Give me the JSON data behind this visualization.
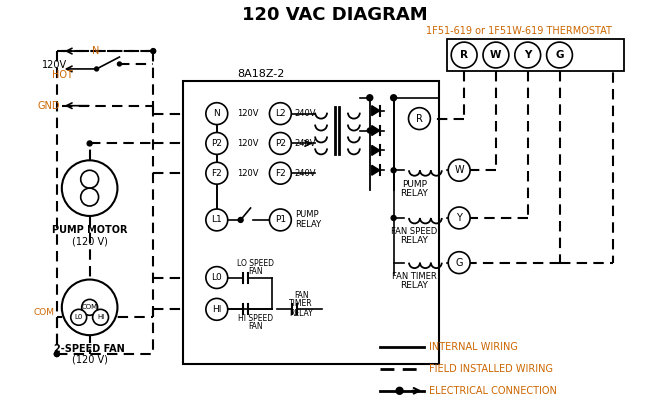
{
  "title": "120 VAC DIAGRAM",
  "background_color": "#ffffff",
  "thermostat_label": "1F51-619 or 1F51W-619 THERMOSTAT",
  "thermostat_color": "#cc6600",
  "control_box_label": "8A18Z-2",
  "terminals_thermostat": [
    "R",
    "W",
    "Y",
    "G"
  ],
  "legend_items": [
    {
      "label": "INTERNAL WIRING"
    },
    {
      "label": "FIELD INSTALLED WIRING"
    },
    {
      "label": "ELECTRICAL CONNECTION"
    }
  ],
  "orange_color": "#cc6600",
  "black": "#000000"
}
